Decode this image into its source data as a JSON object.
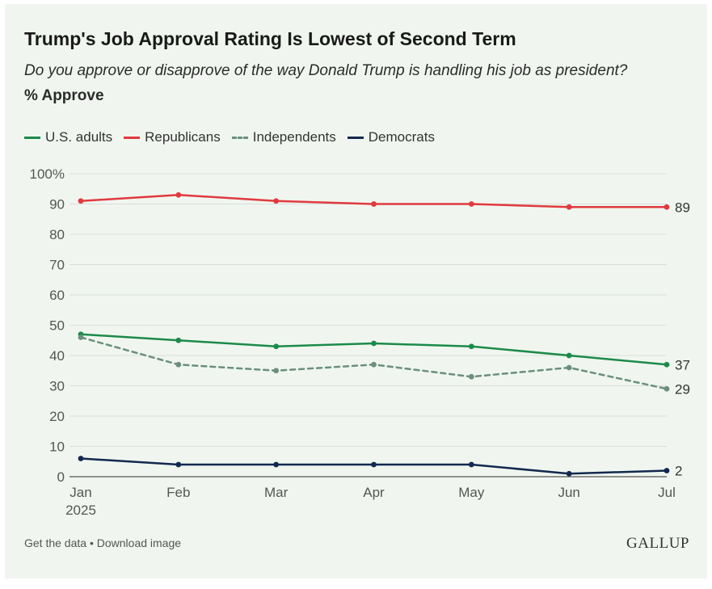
{
  "header": {
    "title": "Trump's Job Approval Rating Is Lowest of Second Term",
    "subtitle": "Do you approve or disapprove of the way Donald Trump is handling his job as president?",
    "measure": "% Approve"
  },
  "footer": {
    "get_data": "Get the data",
    "separator": " • ",
    "download": "Download image",
    "logo": "GALLUP"
  },
  "chart_data": {
    "type": "line",
    "categories": [
      "Jan",
      "Feb",
      "Mar",
      "Apr",
      "May",
      "Jun",
      "Jul"
    ],
    "category_sublabels": [
      "2025",
      "",
      "",
      "",
      "",
      "",
      ""
    ],
    "ylim": [
      0,
      100
    ],
    "yticks": [
      0,
      10,
      20,
      30,
      40,
      50,
      60,
      70,
      80,
      90,
      100
    ],
    "ytick_labels": [
      "0",
      "10",
      "20",
      "30",
      "40",
      "50",
      "60",
      "70",
      "80",
      "90",
      "100%"
    ],
    "grid": true,
    "legend_position": "top-left",
    "series": [
      {
        "name": "U.S. adults",
        "color": "#1c8a4a",
        "dashed": false,
        "values": [
          47,
          45,
          43,
          44,
          43,
          40,
          37
        ],
        "end_label": "37"
      },
      {
        "name": "Republicans",
        "color": "#e03a3e",
        "dashed": false,
        "values": [
          91,
          93,
          91,
          90,
          90,
          89,
          89
        ],
        "end_label": "89"
      },
      {
        "name": "Independents",
        "color": "#6b8f7e",
        "dashed": true,
        "values": [
          46,
          37,
          35,
          37,
          33,
          36,
          29
        ],
        "end_label": "29"
      },
      {
        "name": "Democrats",
        "color": "#13284f",
        "dashed": false,
        "values": [
          6,
          4,
          4,
          4,
          4,
          1,
          2
        ],
        "end_label": "2"
      }
    ]
  }
}
